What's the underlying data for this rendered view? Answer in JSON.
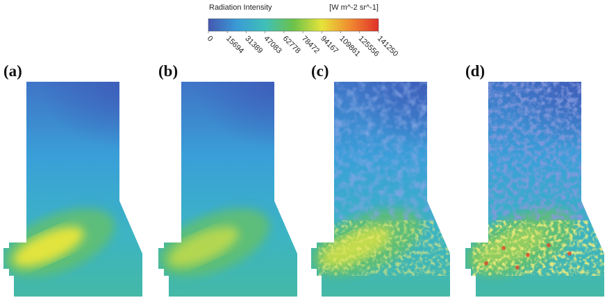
{
  "colorbar": {
    "title": "Radiation Intensity",
    "units": "[W m^-2 sr^-1]",
    "ticks": [
      0,
      15694,
      31389,
      47083,
      62778,
      78472,
      94167,
      109861,
      125556,
      141250
    ],
    "colors": [
      "#4457b0",
      "#3a9bd6",
      "#3fbfb8",
      "#6cc24a",
      "#e6e33a",
      "#f08a30",
      "#e0302a"
    ]
  },
  "panels": [
    {
      "label": "(a)"
    },
    {
      "label": "(b)"
    },
    {
      "label": "(c)"
    },
    {
      "label": "(d)"
    }
  ]
}
